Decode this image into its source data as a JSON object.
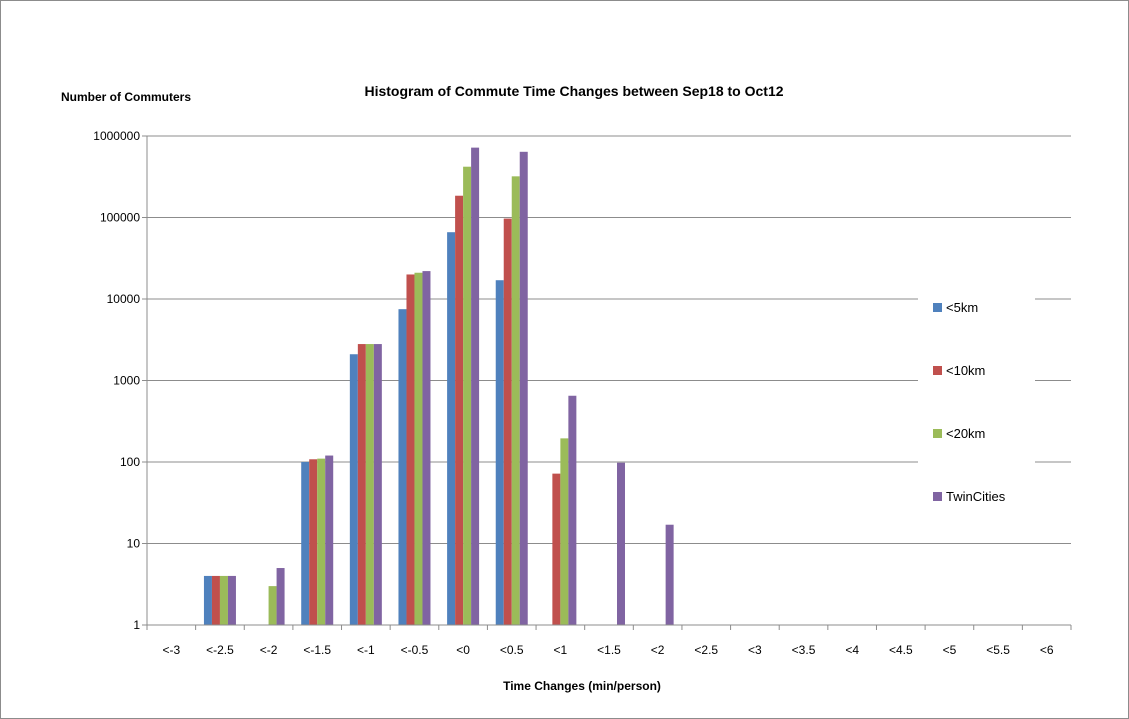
{
  "chart_data": {
    "type": "bar",
    "title": "Histogram of Commute Time Changes between Sep18 to Oct12",
    "xlabel": "Time Changes (min/person)",
    "ylabel": "Number of Commuters",
    "yscale": "log",
    "ylim": [
      1,
      1000000
    ],
    "yticks": [
      "1",
      "10",
      "100",
      "1000",
      "10000",
      "100000",
      "1000000"
    ],
    "grid": true,
    "legend_position": "right",
    "categories": [
      "<-3",
      "<-2.5",
      "<-2",
      "<-1.5",
      "<-1",
      "<-0.5",
      "<0",
      "<0.5",
      "<1",
      "<1.5",
      "<2",
      "<2.5",
      "<3",
      "<3.5",
      "<4",
      "<4.5",
      "<5",
      "<5.5",
      "<6"
    ],
    "series": [
      {
        "name": "<5km",
        "color": "#4f81bd",
        "values": [
          null,
          4,
          null,
          100,
          2100,
          7500,
          66000,
          17000,
          null,
          null,
          null,
          null,
          null,
          null,
          null,
          null,
          null,
          null,
          null
        ]
      },
      {
        "name": "<10km",
        "color": "#c0504d",
        "values": [
          null,
          4,
          null,
          108,
          2800,
          20000,
          185000,
          97000,
          72,
          null,
          null,
          null,
          null,
          null,
          null,
          null,
          null,
          null,
          null
        ]
      },
      {
        "name": "<20km",
        "color": "#9bbb59",
        "values": [
          null,
          4,
          3,
          110,
          2800,
          21000,
          420000,
          320000,
          195,
          null,
          null,
          null,
          null,
          null,
          null,
          null,
          null,
          null,
          null
        ]
      },
      {
        "name": "TwinCities",
        "color": "#8064a2",
        "values": [
          null,
          4,
          5,
          120,
          2800,
          22000,
          720000,
          640000,
          650,
          98,
          17,
          null,
          null,
          null,
          null,
          null,
          null,
          null,
          null
        ]
      }
    ]
  }
}
